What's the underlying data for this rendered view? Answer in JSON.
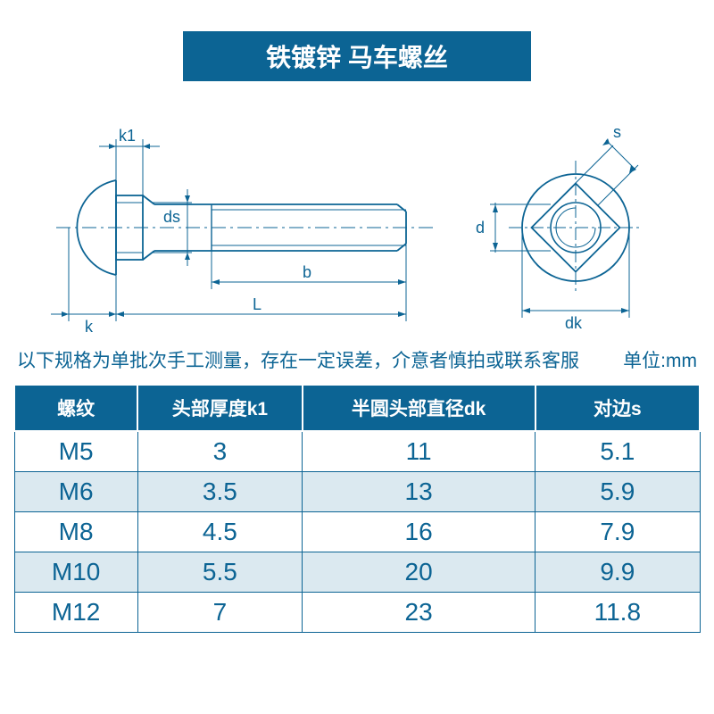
{
  "title": "铁镀锌 马车螺丝",
  "title_bg": "#0c6494",
  "title_color": "#ffffff",
  "title_fontsize": 28,
  "diagram": {
    "line_color": "#0c6494",
    "line_width": 1.8,
    "thin_line_width": 1,
    "labels": {
      "k1": "k1",
      "ds": "ds",
      "b": "b",
      "L": "L",
      "k": "k",
      "s": "s",
      "d": "d",
      "dk": "dk"
    }
  },
  "note_text": "以下规格为单批次手工测量，存在一定误差，介意者慎拍或联系客服",
  "note_color": "#0c6494",
  "unit_label": "单位:mm",
  "unit_color": "#0c6494",
  "table": {
    "header_bg": "#0c6494",
    "header_color": "#ffffff",
    "cell_color": "#0c6494",
    "border_color": "#0c6494",
    "alt_row_bg": "#dbe9f0",
    "columns": [
      "螺纹",
      "头部厚度k1",
      "半圆头部直径dk",
      "对边s"
    ],
    "rows": [
      [
        "M5",
        "3",
        "11",
        "5.1"
      ],
      [
        "M6",
        "3.5",
        "13",
        "5.9"
      ],
      [
        "M8",
        "4.5",
        "16",
        "7.9"
      ],
      [
        "M10",
        "5.5",
        "20",
        "9.9"
      ],
      [
        "M12",
        "7",
        "23",
        "11.8"
      ]
    ],
    "col_widths_pct": [
      18,
      24,
      34,
      24
    ]
  }
}
